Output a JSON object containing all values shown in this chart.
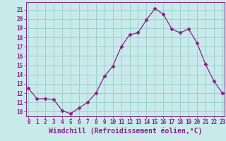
{
  "x": [
    0,
    1,
    2,
    3,
    4,
    5,
    6,
    7,
    8,
    9,
    10,
    11,
    12,
    13,
    14,
    15,
    16,
    17,
    18,
    19,
    20,
    21,
    22,
    23
  ],
  "y": [
    12.5,
    11.4,
    11.4,
    11.3,
    10.1,
    9.8,
    10.4,
    11.0,
    12.0,
    13.8,
    14.9,
    17.0,
    18.3,
    18.5,
    19.9,
    21.1,
    20.5,
    18.9,
    18.5,
    18.9,
    17.4,
    15.1,
    13.3,
    12.0
  ],
  "line_color": "#882288",
  "marker": "D",
  "marker_size": 2.5,
  "bg_color": "#c8eaea",
  "grid_color": "#99cccc",
  "xlabel": "Windchill (Refroidissement éolien,°C)",
  "ylim": [
    9.5,
    21.8
  ],
  "xlim": [
    -0.3,
    23.3
  ],
  "yticks": [
    10,
    11,
    12,
    13,
    14,
    15,
    16,
    17,
    18,
    19,
    20,
    21
  ],
  "xticks": [
    0,
    1,
    2,
    3,
    4,
    5,
    6,
    7,
    8,
    9,
    10,
    11,
    12,
    13,
    14,
    15,
    16,
    17,
    18,
    19,
    20,
    21,
    22,
    23
  ],
  "tick_color": "#882288",
  "label_color": "#882288",
  "tick_fontsize": 5.5,
  "xlabel_fontsize": 7.0,
  "line_width": 0.9,
  "spine_color": "#882288"
}
